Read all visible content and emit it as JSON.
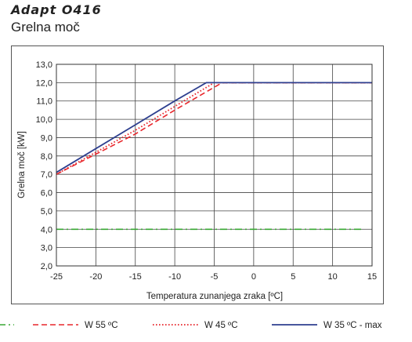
{
  "header": {
    "brand": "Adapt O416",
    "subtitle": "Grelna moč"
  },
  "chart_data": {
    "type": "line",
    "xlabel": "Temperatura zunanjega zraka [ºC]",
    "ylabel": "Grelna moč [kW]",
    "xlim": [
      -25,
      15
    ],
    "ylim": [
      2,
      13
    ],
    "xticks": [
      -25,
      -20,
      -15,
      -10,
      -5,
      0,
      5,
      10,
      15
    ],
    "xtick_labels": [
      "-25",
      "-20",
      "-15",
      "-10",
      "-5",
      "0",
      "5",
      "10",
      "15"
    ],
    "yticks": [
      2,
      3,
      4,
      5,
      6,
      7,
      8,
      9,
      10,
      11,
      12,
      13
    ],
    "ytick_labels": [
      "2,0",
      "3,0",
      "4,0",
      "5,0",
      "6,0",
      "7,0",
      "8,0",
      "9,0",
      "10,0",
      "11,0",
      "12,0",
      "13,0"
    ],
    "grid": true,
    "legend_position": "bottom",
    "series": [
      {
        "name": "",
        "style": "dashdot",
        "color": "#3aa835",
        "x": [
          -25,
          14
        ],
        "y": [
          4.0,
          4.0
        ]
      },
      {
        "name": "W 55 ºC",
        "style": "dashed",
        "color": "#e8262b",
        "x": [
          -25,
          -15,
          -10,
          -4,
          15
        ],
        "y": [
          7.0,
          9.2,
          10.5,
          12.0,
          12.0
        ]
      },
      {
        "name": "W 45 ºC",
        "style": "dotted",
        "color": "#e8262b",
        "x": [
          -25,
          -15,
          -10,
          -5,
          15
        ],
        "y": [
          7.0,
          9.4,
          10.7,
          12.0,
          12.0
        ]
      },
      {
        "name": "W 35 ºC - max",
        "style": "solid",
        "color": "#2e3f8f",
        "x": [
          -25,
          -15,
          -10,
          -6,
          15
        ],
        "y": [
          7.1,
          9.7,
          11.0,
          12.0,
          12.0
        ]
      }
    ]
  }
}
